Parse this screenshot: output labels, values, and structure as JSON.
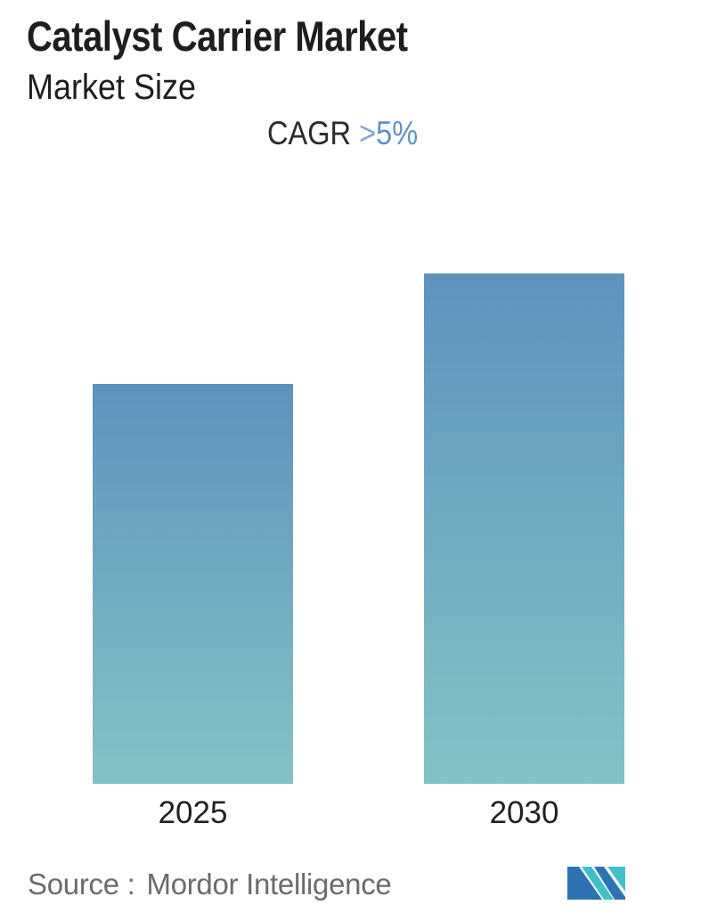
{
  "header": {
    "title": "Catalyst Carrier Market",
    "subtitle": "Market Size"
  },
  "cagr": {
    "label": "CAGR",
    "gt": ">",
    "value": "5%",
    "text_color": "#2b2b2b",
    "value_color": "#5e92c6"
  },
  "chart_data": {
    "type": "bar",
    "title": "Catalyst Carrier Market",
    "subtitle": "Market Size",
    "annotation": "CAGR >5%",
    "categories": [
      "2025",
      "2030"
    ],
    "values": [
      100,
      127.6
    ],
    "values_note": "relative index (no numeric axis shown); 2030 bar ≈ 1.276 × 2025 bar, consistent with CAGR >5% over 5 years",
    "xlabel": "",
    "ylabel": "",
    "grid": false,
    "legend": null,
    "bar_gradient_top": "#5e92bd",
    "bar_gradient_bottom": "#83c3c6"
  },
  "footer": {
    "source_label": "Source :",
    "source_value": "Mordor Intelligence"
  },
  "logo": {
    "name": "Mordor Intelligence logo",
    "dark_blue": "#2d72b3",
    "teal": "#41c0ca"
  }
}
